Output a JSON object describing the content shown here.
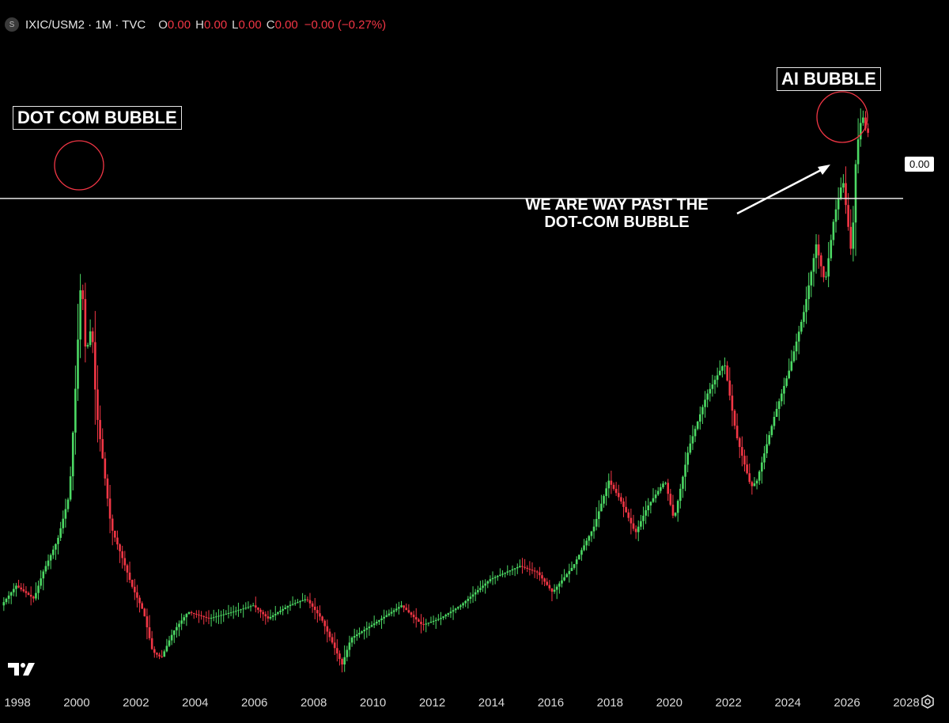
{
  "header": {
    "symbol": "IXIC/USM2 · 1M · TVC",
    "open_label": "O",
    "open_value": "0.00",
    "high_label": "H",
    "high_value": "0.00",
    "low_label": "L",
    "low_value": "0.00",
    "close_label": "C",
    "close_value": "0.00",
    "change": "−0.00 (−0.27%)"
  },
  "annotations": {
    "dot_com": "DOT COM BUBBLE",
    "ai": "AI BUBBLE",
    "note_line1": "WE ARE WAY PAST THE",
    "note_line2": "DOT-COM BUBBLE"
  },
  "price_line_label": "0.00",
  "colors": {
    "up": "#4cd964",
    "down": "#f23645",
    "background": "#000000",
    "axis_text": "#d9d9d9"
  },
  "chart_data": {
    "type": "candlestick",
    "title": "",
    "x_axis_ticks": [
      "1998",
      "2000",
      "2002",
      "2004",
      "2006",
      "2008",
      "2010",
      "2012",
      "2014",
      "2016",
      "2018",
      "2020",
      "2022",
      "2024",
      "2026",
      "2028"
    ],
    "x_range": [
      1998,
      2028.5
    ],
    "y_scale": "relative (values not printed)",
    "horizontal_line_level": 0.72,
    "series": [
      {
        "name": "",
        "keypoints": [
          [
            1997.5,
            0.1
          ],
          [
            1998.0,
            0.13
          ],
          [
            1998.6,
            0.11
          ],
          [
            1998.9,
            0.15
          ],
          [
            1999.4,
            0.2
          ],
          [
            1999.8,
            0.27
          ],
          [
            2000.0,
            0.43
          ],
          [
            2000.2,
            0.61
          ],
          [
            2000.35,
            0.48
          ],
          [
            2000.55,
            0.53
          ],
          [
            2000.7,
            0.4
          ],
          [
            2000.9,
            0.33
          ],
          [
            2001.2,
            0.22
          ],
          [
            2001.6,
            0.17
          ],
          [
            2001.9,
            0.13
          ],
          [
            2002.3,
            0.09
          ],
          [
            2002.6,
            0.03
          ],
          [
            2002.9,
            0.02
          ],
          [
            2003.3,
            0.06
          ],
          [
            2003.8,
            0.09
          ],
          [
            2004.5,
            0.08
          ],
          [
            2005.3,
            0.09
          ],
          [
            2006.0,
            0.1
          ],
          [
            2006.5,
            0.08
          ],
          [
            2007.2,
            0.1
          ],
          [
            2007.8,
            0.11
          ],
          [
            2008.3,
            0.08
          ],
          [
            2008.7,
            0.04
          ],
          [
            2009.0,
            0.01
          ],
          [
            2009.3,
            0.05
          ],
          [
            2010.0,
            0.07
          ],
          [
            2011.0,
            0.1
          ],
          [
            2011.7,
            0.07
          ],
          [
            2012.3,
            0.08
          ],
          [
            2013.0,
            0.1
          ],
          [
            2014.0,
            0.14
          ],
          [
            2015.0,
            0.16
          ],
          [
            2015.6,
            0.15
          ],
          [
            2016.1,
            0.12
          ],
          [
            2016.8,
            0.16
          ],
          [
            2017.5,
            0.22
          ],
          [
            2018.0,
            0.29
          ],
          [
            2018.4,
            0.26
          ],
          [
            2018.9,
            0.21
          ],
          [
            2019.3,
            0.25
          ],
          [
            2019.9,
            0.29
          ],
          [
            2020.2,
            0.23
          ],
          [
            2020.7,
            0.34
          ],
          [
            2021.3,
            0.42
          ],
          [
            2021.9,
            0.47
          ],
          [
            2022.3,
            0.36
          ],
          [
            2022.8,
            0.28
          ],
          [
            2023.0,
            0.29
          ],
          [
            2023.6,
            0.39
          ],
          [
            2024.1,
            0.46
          ],
          [
            2024.6,
            0.55
          ],
          [
            2025.0,
            0.65
          ],
          [
            2025.3,
            0.59
          ],
          [
            2025.6,
            0.69
          ],
          [
            2025.9,
            0.75
          ],
          [
            2026.2,
            0.63
          ],
          [
            2026.35,
            0.79
          ],
          [
            2026.55,
            0.85
          ],
          [
            2026.7,
            0.82
          ]
        ]
      }
    ]
  }
}
